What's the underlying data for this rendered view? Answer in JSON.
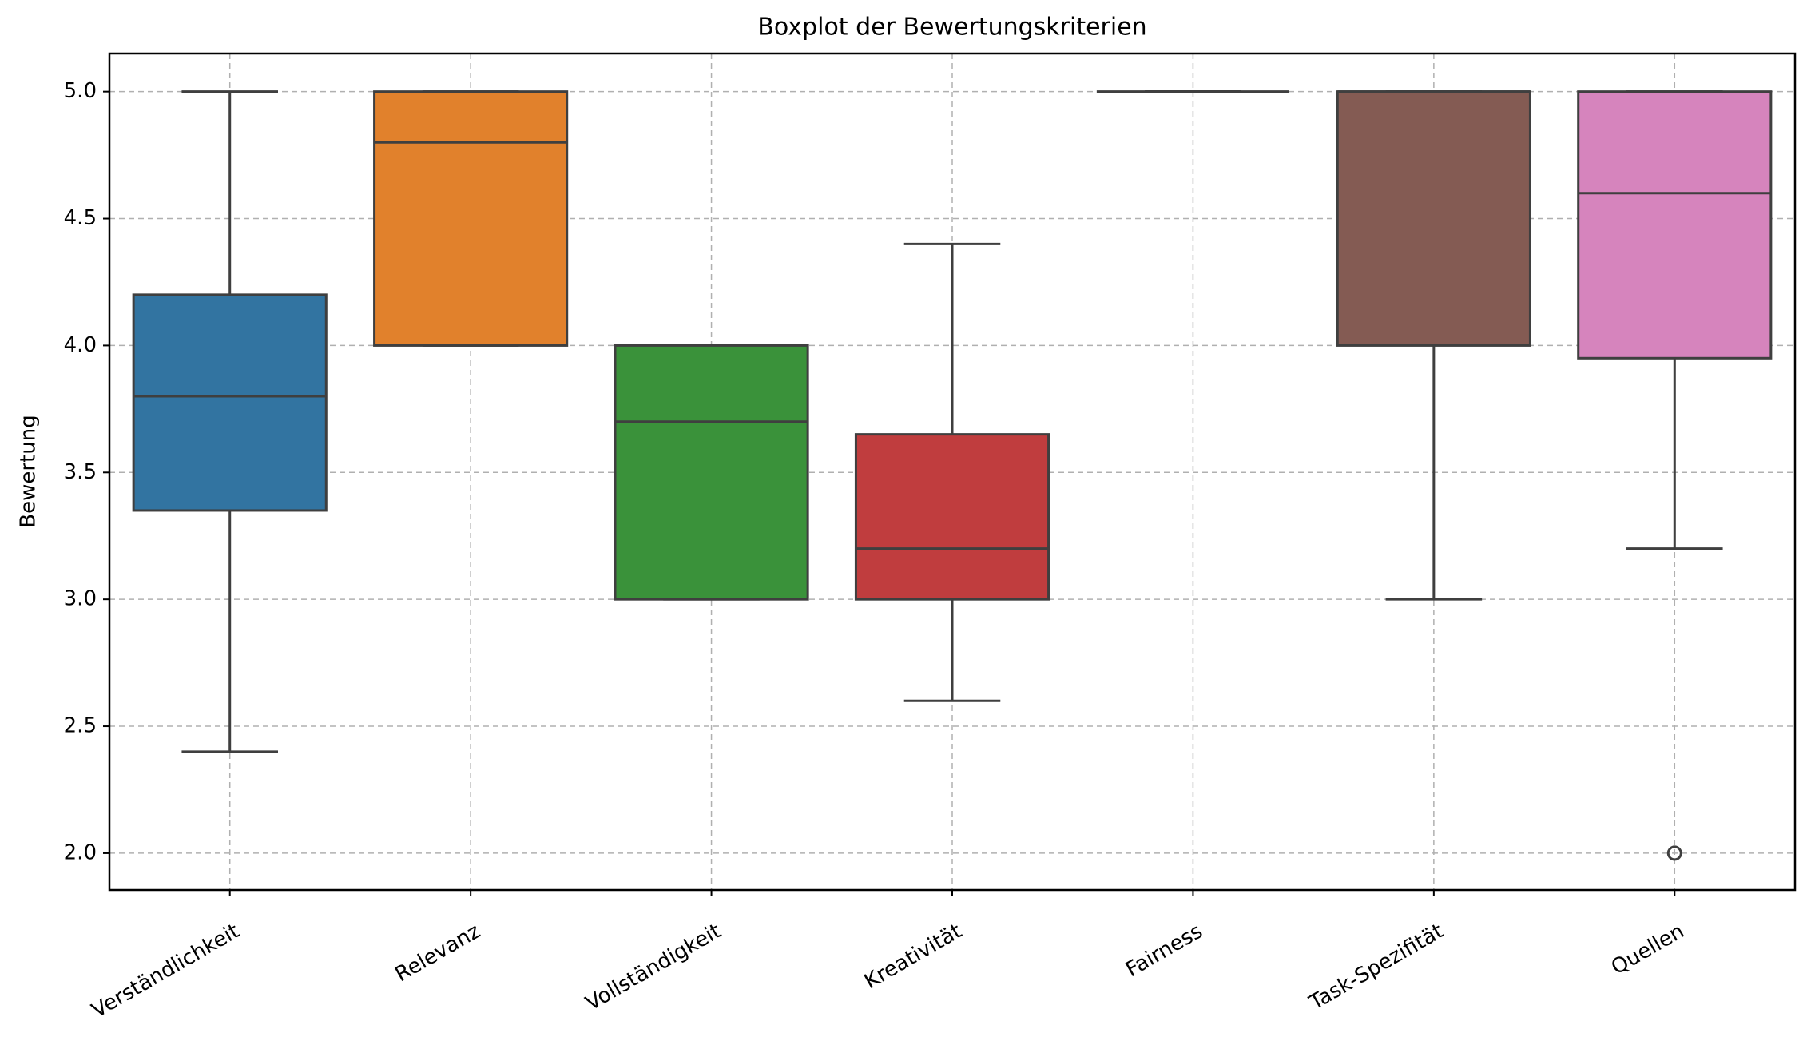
{
  "chart_data": {
    "type": "box",
    "title": "Boxplot der Bewertungskriterien",
    "y_label": "Bewertung",
    "categories": [
      "Verständlichkeit",
      "Relevanz",
      "Vollständigkeit",
      "Kreativität",
      "Fairness",
      "Task-Spezifität",
      "Quellen"
    ],
    "boxes": [
      {
        "color": "#3274a1",
        "whislo": 2.4,
        "q1": 3.35,
        "med": 3.8,
        "q3": 4.2,
        "whishi": 5.0,
        "fliers": []
      },
      {
        "color": "#e1812c",
        "whislo": 4.0,
        "q1": 4.0,
        "med": 4.8,
        "q3": 5.0,
        "whishi": 5.0,
        "fliers": []
      },
      {
        "color": "#3a923a",
        "whislo": 3.0,
        "q1": 3.0,
        "med": 3.7,
        "q3": 4.0,
        "whishi": 4.0,
        "fliers": []
      },
      {
        "color": "#c03d3e",
        "whislo": 2.6,
        "q1": 3.0,
        "med": 3.2,
        "q3": 3.65,
        "whishi": 4.4,
        "fliers": []
      },
      {
        "color": "#9372b2",
        "whislo": 5.0,
        "q1": 5.0,
        "med": 5.0,
        "q3": 5.0,
        "whishi": 5.0,
        "fliers": []
      },
      {
        "color": "#845b53",
        "whislo": 3.0,
        "q1": 4.0,
        "med": 5.0,
        "q3": 5.0,
        "whishi": 5.0,
        "fliers": []
      },
      {
        "color": "#d684bd",
        "whislo": 3.2,
        "q1": 3.95,
        "med": 4.6,
        "q3": 5.0,
        "whishi": 5.0,
        "fliers": [
          2.0
        ]
      }
    ],
    "ylim": [
      1.855,
      5.15
    ],
    "yticks": [
      {
        "value": 2,
        "label": "2.0"
      },
      2.5,
      {
        "value": 3,
        "label": "3.0"
      },
      3.5,
      {
        "value": 4,
        "label": "4.0"
      },
      4.5,
      {
        "value": 5,
        "label": "5.0"
      }
    ],
    "grid": true
  }
}
